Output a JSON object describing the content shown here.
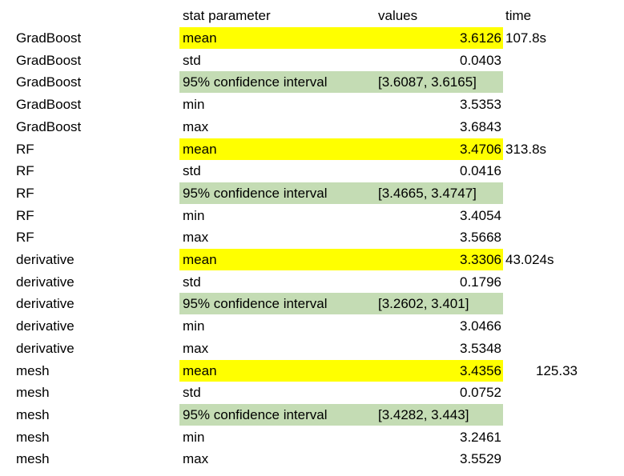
{
  "header": {
    "stat_parameter": "stat parameter",
    "values": "values",
    "time": "time"
  },
  "colors": {
    "mean_highlight": "#ffff00",
    "ci_highlight": "#c4dcb4"
  },
  "rows": [
    {
      "model": "GradBoost",
      "param": "mean",
      "value": "3.6126",
      "time": "107.8s"
    },
    {
      "model": "GradBoost",
      "param": "std",
      "value": "0.0403",
      "time": ""
    },
    {
      "model": "GradBoost",
      "param": "95% confidence interval",
      "value": "[3.6087, 3.6165]",
      "time": ""
    },
    {
      "model": "GradBoost",
      "param": "min",
      "value": "3.5353",
      "time": ""
    },
    {
      "model": "GradBoost",
      "param": "max",
      "value": "3.6843",
      "time": ""
    },
    {
      "model": "RF",
      "param": "mean",
      "value": "3.4706",
      "time": "313.8s"
    },
    {
      "model": "RF",
      "param": "std",
      "value": "0.0416",
      "time": ""
    },
    {
      "model": "RF",
      "param": "95% confidence interval",
      "value": "[3.4665, 3.4747]",
      "time": ""
    },
    {
      "model": "RF",
      "param": "min",
      "value": "3.4054",
      "time": ""
    },
    {
      "model": "RF",
      "param": "max",
      "value": "3.5668",
      "time": ""
    },
    {
      "model": "derivative",
      "param": "mean",
      "value": "3.3306",
      "time": "43.024s"
    },
    {
      "model": "derivative",
      "param": "std",
      "value": "0.1796",
      "time": ""
    },
    {
      "model": "derivative",
      "param": "95% confidence interval",
      "value": "[3.2602, 3.401]",
      "time": ""
    },
    {
      "model": "derivative",
      "param": "min",
      "value": "3.0466",
      "time": ""
    },
    {
      "model": "derivative",
      "param": "max",
      "value": "3.5348",
      "time": ""
    },
    {
      "model": "mesh",
      "param": "mean",
      "value": "3.4356",
      "time": "125.33"
    },
    {
      "model": "mesh",
      "param": "std",
      "value": "0.0752",
      "time": ""
    },
    {
      "model": "mesh",
      "param": "95% confidence interval",
      "value": "[3.4282, 3.443]",
      "time": ""
    },
    {
      "model": "mesh",
      "param": "min",
      "value": "3.2461",
      "time": ""
    },
    {
      "model": "mesh",
      "param": "max",
      "value": "3.5529",
      "time": ""
    }
  ]
}
